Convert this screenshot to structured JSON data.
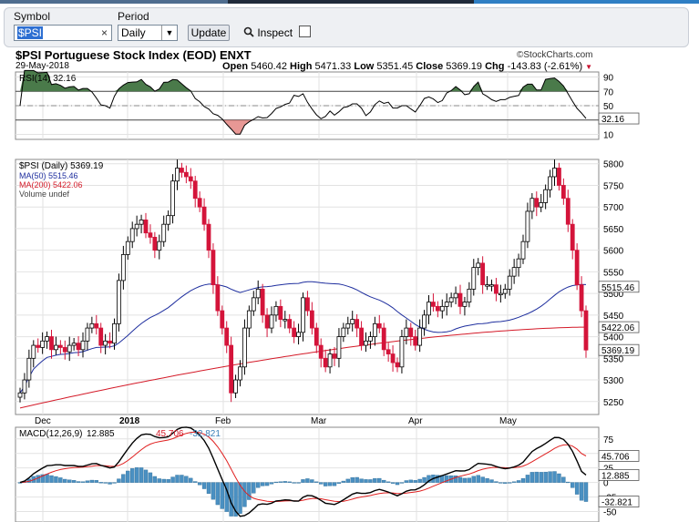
{
  "toolbar": {
    "symbol_label": "Symbol",
    "symbol_value": "$PSI",
    "symbol_clear": "×",
    "period_label": "Period",
    "period_value": "Daily",
    "update_label": "Update",
    "inspect_label": "Inspect"
  },
  "chart_header": {
    "title": "$PSI Portuguese Stock Index (EOD) ENXT",
    "brand": "©StockCharts.com",
    "date": "29-May-2018",
    "open_label": "Open",
    "open": "5460.42",
    "high_label": "High",
    "high": "5471.33",
    "low_label": "Low",
    "low": "5351.45",
    "close_label": "Close",
    "close": "5369.19",
    "chg_label": "Chg",
    "chg": "-143.83 (-2.61%)"
  },
  "rsi_panel": {
    "label": "RSI(14) 32.16",
    "current_tag": "32.16",
    "ticks": [
      "90",
      "70",
      "50",
      "30",
      "10"
    ]
  },
  "price_panel": {
    "legend": [
      "$PSI (Daily) 5369.19",
      "MA(50) 5515.46",
      "MA(200) 5422.06",
      "Volume undef"
    ],
    "ticks": [
      "5800",
      "5750",
      "5700",
      "5650",
      "5600",
      "5550",
      "5500",
      "5450",
      "5400",
      "5350",
      "5300",
      "5250"
    ],
    "tags": {
      "ma50": "5515.46",
      "ma200": "5422.06",
      "close": "5369.19"
    }
  },
  "macd_panel": {
    "label_prefix": "MACD(12,26,9)",
    "macd": "12.885",
    "signal": "45.706",
    "hist": "-32.821",
    "ticks": [
      "75",
      "50",
      "25",
      "0",
      "-25",
      "-50"
    ],
    "tags": [
      "45.706",
      "12.885",
      "-32.821"
    ]
  },
  "x_axis": {
    "months": [
      "Dec",
      "2018",
      "Feb",
      "Mar",
      "Apr",
      "May"
    ]
  },
  "colors": {
    "up": "#ffffff",
    "down": "#d4143a",
    "ma50": "#1e2e9e",
    "ma200": "#d41a28",
    "rsi_fill": "#4a7a4a",
    "macd": "#000000",
    "signal": "#e02020",
    "hist": "#4a90c2"
  },
  "chart_data": [
    {
      "type": "candlestick",
      "title": "$PSI Portuguese Stock Index (EOD) ENXT",
      "ylim": [
        5220,
        5810
      ],
      "x_months": [
        "Dec",
        "2018",
        "Feb",
        "Mar",
        "Apr",
        "May"
      ],
      "closes": [
        5270,
        5300,
        5350,
        5380,
        5375,
        5390,
        5400,
        5370,
        5380,
        5375,
        5365,
        5380,
        5385,
        5370,
        5390,
        5420,
        5430,
        5420,
        5380,
        5390,
        5385,
        5430,
        5530,
        5590,
        5620,
        5650,
        5660,
        5670,
        5640,
        5630,
        5600,
        5620,
        5660,
        5680,
        5760,
        5790,
        5780,
        5770,
        5760,
        5720,
        5700,
        5660,
        5600,
        5520,
        5460,
        5420,
        5380,
        5270,
        5300,
        5330,
        5420,
        5460,
        5490,
        5510,
        5450,
        5420,
        5450,
        5470,
        5440,
        5440,
        5420,
        5400,
        5410,
        5490,
        5460,
        5420,
        5380,
        5350,
        5330,
        5360,
        5350,
        5400,
        5420,
        5430,
        5440,
        5420,
        5380,
        5390,
        5400,
        5430,
        5420,
        5370,
        5360,
        5340,
        5330,
        5400,
        5420,
        5400,
        5380,
        5420,
        5450,
        5480,
        5470,
        5460,
        5470,
        5480,
        5490,
        5500,
        5470,
        5480,
        5510,
        5560,
        5570,
        5520,
        5520,
        5520,
        5500,
        5500,
        5510,
        5540,
        5560,
        5580,
        5620,
        5690,
        5720,
        5700,
        5710,
        5740,
        5770,
        5790,
        5750,
        5720,
        5660,
        5600,
        5520,
        5460,
        5369.19
      ],
      "ma50": {
        "start": 5380,
        "end": 5515.46,
        "peak": 5530
      },
      "ma200": {
        "start": 5235,
        "end": 5422.06
      },
      "rsi": {
        "current": 32.16,
        "ylim": [
          0,
          100
        ],
        "bands": [
          70,
          30
        ]
      },
      "macd": {
        "macd": 12.885,
        "signal": 45.706,
        "histogram": -32.821,
        "ylim": [
          -60,
          90
        ]
      }
    }
  ]
}
